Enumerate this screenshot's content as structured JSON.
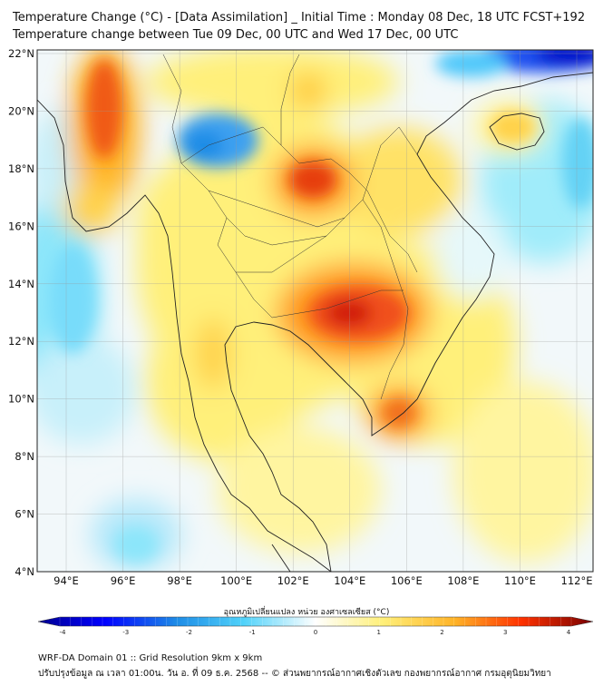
{
  "header": {
    "title_line1": "Temperature Change (°C) - [Data Assimilation] _ Initial Time : Monday 08 Dec, 18 UTC FCST+192",
    "title_line2": "Temperature change between Tue 09 Dec, 00 UTC and Wed 17 Dec, 00 UTC"
  },
  "map": {
    "lat_labels": [
      "22°N",
      "20°N",
      "18°N",
      "16°N",
      "14°N",
      "12°N",
      "10°N",
      "8°N",
      "6°N",
      "4°N"
    ],
    "lon_labels": [
      "94°E",
      "96°E",
      "98°E",
      "100°E",
      "102°E",
      "104°E",
      "106°E",
      "108°E",
      "110°E",
      "112°E"
    ]
  },
  "colorbar": {
    "title": "อุณหภูมิเปลี่ยนแปลง หน่วย องศาเซลเซียส (°C)",
    "ticks": [
      "-4",
      "-3",
      "-2",
      "-1",
      "0",
      "1",
      "2",
      "3",
      "4"
    ]
  },
  "footer": {
    "line1": "WRF-DA Domain 01 :: Grid Resolution 9km x 9km",
    "line2": "ปรับปรุงข้อมูล ณ เวลา 01:00น. วัน อ. ที่ 09 ธ.ค. 2568 -- © ส่วนพยากรณ์อากาศเชิงตัวเลข กองพยากรณ์อากาศ กรมอุตุนิยมวิทยา"
  },
  "colors": {
    "strong_cool": "#0000b4",
    "cool": "#1e8ce6",
    "light_cool": "#8ce6fa",
    "neutral": "#ffffff",
    "light_warm": "#fff5a0",
    "warm": "#ffc832",
    "hot": "#f05a14",
    "very_hot": "#c80000"
  }
}
